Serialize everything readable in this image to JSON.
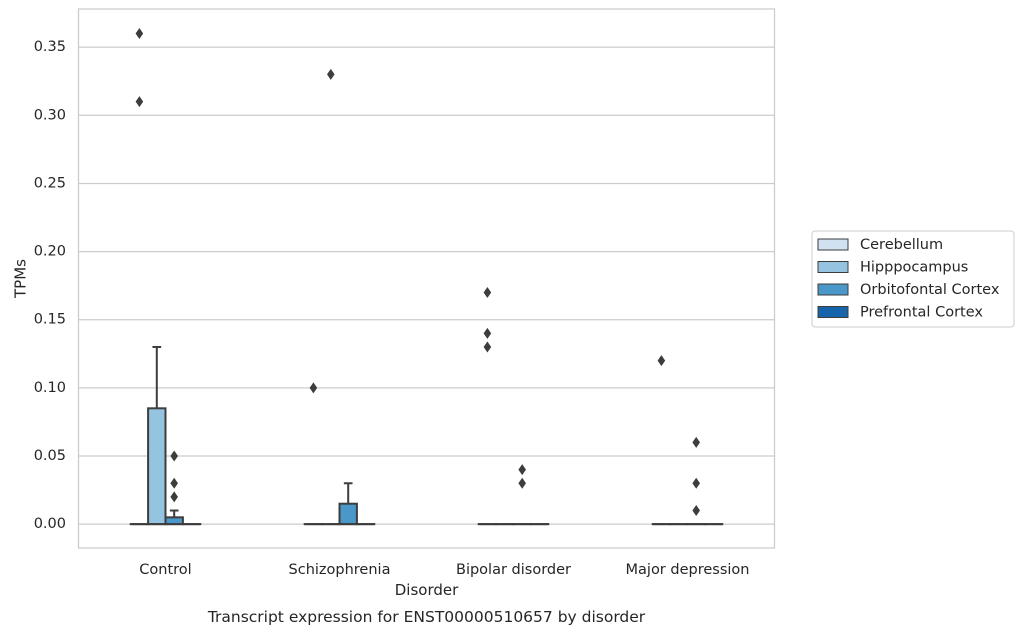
{
  "chart_data": {
    "type": "box",
    "title": "Transcript expression for ENST00000510657 by disorder",
    "xlabel": "Disorder",
    "ylabel": "TPMs",
    "categories": [
      "Control",
      "Schizophrenia",
      "Bipolar disorder",
      "Major depression"
    ],
    "ylim": [
      -0.0175,
      0.378
    ],
    "yticks": [
      0.0,
      0.05,
      0.1,
      0.15,
      0.2,
      0.25,
      0.3,
      0.35
    ],
    "ytick_labels": [
      "0.00",
      "0.05",
      "0.10",
      "0.15",
      "0.20",
      "0.25",
      "0.30",
      "0.35"
    ],
    "grid": "horizontal",
    "legend_position": "right",
    "series": [
      {
        "name": "Cerebellum",
        "color": "#d0e1f2",
        "boxes": [
          {
            "q1": 0,
            "median": 0,
            "q3": 0,
            "whisker_low": 0,
            "whisker_high": 0,
            "outliers": [
              0.36,
              0.31
            ]
          },
          {
            "q1": 0,
            "median": 0,
            "q3": 0,
            "whisker_low": 0,
            "whisker_high": 0,
            "outliers": [
              0.1
            ]
          },
          {
            "q1": 0,
            "median": 0,
            "q3": 0,
            "whisker_low": 0,
            "whisker_high": 0,
            "outliers": [
              0.17,
              0.14,
              0.13
            ]
          },
          {
            "q1": 0,
            "median": 0,
            "q3": 0,
            "whisker_low": 0,
            "whisker_high": 0,
            "outliers": [
              0.12
            ]
          }
        ]
      },
      {
        "name": "Hipppocampus",
        "color": "#94c4df",
        "boxes": [
          {
            "q1": 0,
            "median": 0,
            "q3": 0.085,
            "whisker_low": 0,
            "whisker_high": 0.13,
            "outliers": []
          },
          {
            "q1": 0,
            "median": 0,
            "q3": 0,
            "whisker_low": 0,
            "whisker_high": 0,
            "outliers": [
              0.33
            ]
          },
          {
            "q1": 0,
            "median": 0,
            "q3": 0,
            "whisker_low": 0,
            "whisker_high": 0,
            "outliers": []
          },
          {
            "q1": 0,
            "median": 0,
            "q3": 0,
            "whisker_low": 0,
            "whisker_high": 0,
            "outliers": []
          }
        ]
      },
      {
        "name": "Orbitofontal Cortex",
        "color": "#4a98c9",
        "boxes": [
          {
            "q1": 0,
            "median": 0,
            "q3": 0.005,
            "whisker_low": 0,
            "whisker_high": 0.01,
            "outliers": [
              0.05,
              0.03,
              0.02
            ]
          },
          {
            "q1": 0,
            "median": 0,
            "q3": 0.015,
            "whisker_low": 0,
            "whisker_high": 0.03,
            "outliers": []
          },
          {
            "q1": 0,
            "median": 0,
            "q3": 0,
            "whisker_low": 0,
            "whisker_high": 0,
            "outliers": [
              0.04,
              0.03
            ]
          },
          {
            "q1": 0,
            "median": 0,
            "q3": 0,
            "whisker_low": 0,
            "whisker_high": 0,
            "outliers": [
              0.06,
              0.03,
              0.01
            ]
          }
        ]
      },
      {
        "name": "Prefrontal Cortex",
        "color": "#1764ab",
        "boxes": [
          {
            "q1": 0,
            "median": 0,
            "q3": 0,
            "whisker_low": 0,
            "whisker_high": 0,
            "outliers": []
          },
          {
            "q1": 0,
            "median": 0,
            "q3": 0,
            "whisker_low": 0,
            "whisker_high": 0,
            "outliers": []
          },
          {
            "q1": 0,
            "median": 0,
            "q3": 0,
            "whisker_low": 0,
            "whisker_high": 0,
            "outliers": []
          },
          {
            "q1": 0,
            "median": 0,
            "q3": 0,
            "whisker_low": 0,
            "whisker_high": 0,
            "outliers": []
          }
        ]
      }
    ]
  }
}
